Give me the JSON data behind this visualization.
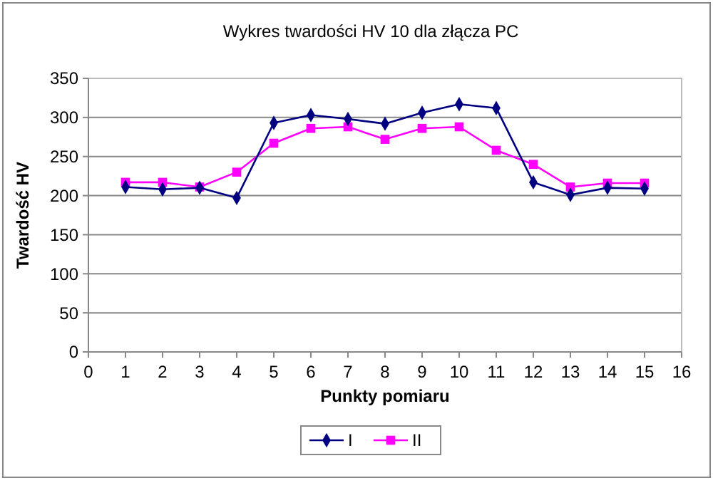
{
  "chart_data": {
    "type": "line",
    "title": "Wykres twardości HV 10 dla złącza PC",
    "xlabel": "Punkty pomiaru",
    "ylabel": "Twardość HV",
    "x": [
      1,
      2,
      3,
      4,
      5,
      6,
      7,
      8,
      9,
      10,
      11,
      12,
      13,
      14,
      15
    ],
    "series": [
      {
        "name": "I",
        "color": "#000080",
        "marker": "diamond",
        "values": [
          211,
          208,
          210,
          197,
          293,
          303,
          298,
          292,
          306,
          317,
          312,
          217,
          201,
          210,
          209
        ]
      },
      {
        "name": "II",
        "color": "#ff00ff",
        "marker": "square",
        "values": [
          217,
          217,
          211,
          230,
          267,
          286,
          288,
          272,
          286,
          288,
          258,
          240,
          211,
          216,
          216
        ]
      }
    ],
    "xlim": [
      0,
      16
    ],
    "xticks": [
      0,
      1,
      2,
      3,
      4,
      5,
      6,
      7,
      8,
      9,
      10,
      11,
      12,
      13,
      14,
      15,
      16
    ],
    "ylim": [
      0,
      350
    ],
    "yticks": [
      0,
      50,
      100,
      150,
      200,
      250,
      300,
      350
    ],
    "grid": "y",
    "legend": "bottom",
    "line_style": "solid"
  }
}
